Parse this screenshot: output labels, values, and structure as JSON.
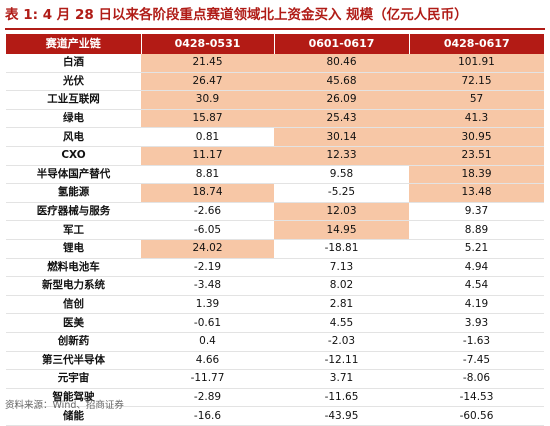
{
  "title": "表 1:  4 月 28 日以来各阶段重点赛道领域北上资金买入 规模（亿元人民币）",
  "table": {
    "headers": [
      "赛道产业链",
      "0428-0531",
      "0601-0617",
      "0428-0617"
    ],
    "rows": [
      {
        "name": "白酒",
        "v": [
          "21.45",
          "80.46",
          "101.91"
        ],
        "hl": [
          true,
          true,
          true
        ]
      },
      {
        "name": "光伏",
        "v": [
          "26.47",
          "45.68",
          "72.15"
        ],
        "hl": [
          true,
          true,
          true
        ]
      },
      {
        "name": "工业互联网",
        "v": [
          "30.9",
          "26.09",
          "57"
        ],
        "hl": [
          true,
          true,
          true
        ]
      },
      {
        "name": "绿电",
        "v": [
          "15.87",
          "25.43",
          "41.3"
        ],
        "hl": [
          true,
          true,
          true
        ]
      },
      {
        "name": "风电",
        "v": [
          "0.81",
          "30.14",
          "30.95"
        ],
        "hl": [
          false,
          true,
          true
        ]
      },
      {
        "name": "CXO",
        "v": [
          "11.17",
          "12.33",
          "23.51"
        ],
        "hl": [
          true,
          true,
          true
        ]
      },
      {
        "name": "半导体国产替代",
        "v": [
          "8.81",
          "9.58",
          "18.39"
        ],
        "hl": [
          false,
          false,
          true
        ]
      },
      {
        "name": "氢能源",
        "v": [
          "18.74",
          "-5.25",
          "13.48"
        ],
        "hl": [
          true,
          false,
          true
        ]
      },
      {
        "name": "医疗器械与服务",
        "v": [
          "-2.66",
          "12.03",
          "9.37"
        ],
        "hl": [
          false,
          true,
          false
        ]
      },
      {
        "name": "军工",
        "v": [
          "-6.05",
          "14.95",
          "8.89"
        ],
        "hl": [
          false,
          true,
          false
        ]
      },
      {
        "name": "锂电",
        "v": [
          "24.02",
          "-18.81",
          "5.21"
        ],
        "hl": [
          true,
          false,
          false
        ]
      },
      {
        "name": "燃料电池车",
        "v": [
          "-2.19",
          "7.13",
          "4.94"
        ],
        "hl": [
          false,
          false,
          false
        ]
      },
      {
        "name": "新型电力系统",
        "v": [
          "-3.48",
          "8.02",
          "4.54"
        ],
        "hl": [
          false,
          false,
          false
        ]
      },
      {
        "name": "信创",
        "v": [
          "1.39",
          "2.81",
          "4.19"
        ],
        "hl": [
          false,
          false,
          false
        ]
      },
      {
        "name": "医美",
        "v": [
          "-0.61",
          "4.55",
          "3.93"
        ],
        "hl": [
          false,
          false,
          false
        ]
      },
      {
        "name": "创新药",
        "v": [
          "0.4",
          "-2.03",
          "-1.63"
        ],
        "hl": [
          false,
          false,
          false
        ]
      },
      {
        "name": "第三代半导体",
        "v": [
          "4.66",
          "-12.11",
          "-7.45"
        ],
        "hl": [
          false,
          false,
          false
        ]
      },
      {
        "name": "元宇宙",
        "v": [
          "-11.77",
          "3.71",
          "-8.06"
        ],
        "hl": [
          false,
          false,
          false
        ]
      },
      {
        "name": "智能驾驶",
        "v": [
          "-2.89",
          "-11.65",
          "-14.53"
        ],
        "hl": [
          false,
          false,
          false
        ]
      },
      {
        "name": "储能",
        "v": [
          "-16.6",
          "-43.95",
          "-60.56"
        ],
        "hl": [
          false,
          false,
          false
        ]
      }
    ]
  },
  "source": "资料来源：Wind、招商证券",
  "colors": {
    "accent": "#b31b15",
    "highlight": "#f7c7a6"
  }
}
